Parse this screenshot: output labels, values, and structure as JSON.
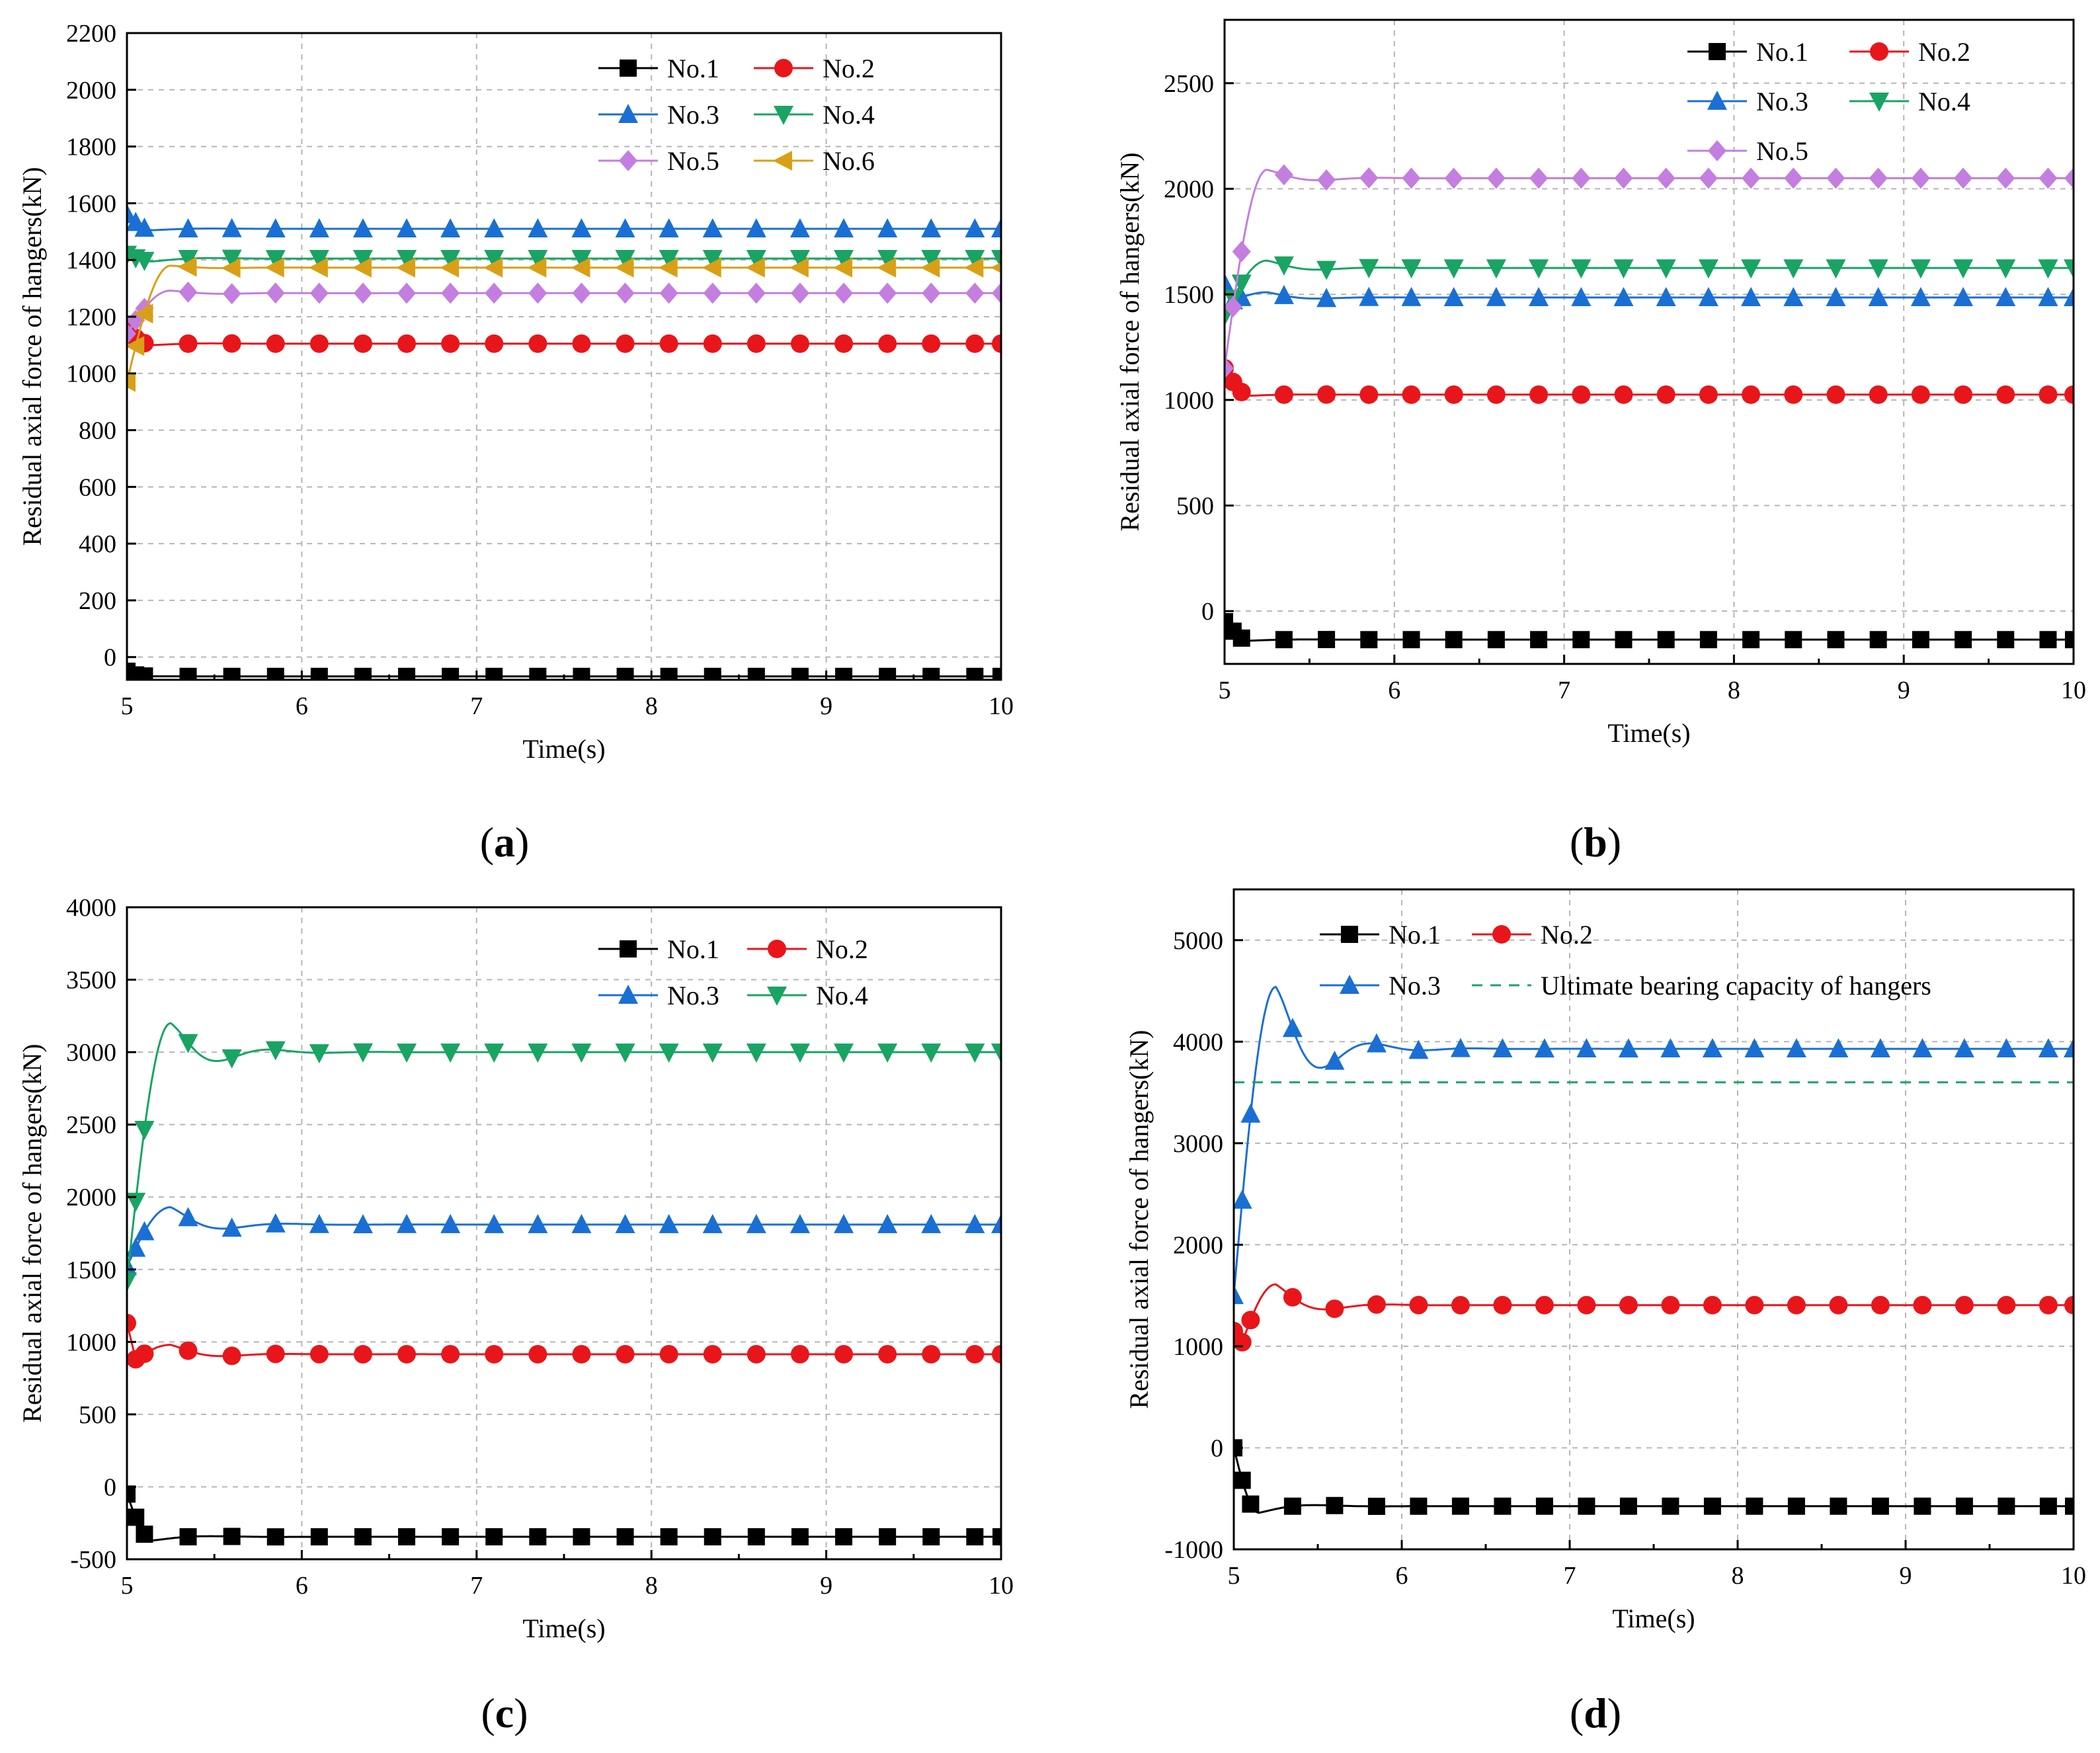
{
  "chart_data": [
    {
      "panel": "(a)",
      "panel_letter": "a",
      "type": "line",
      "xlabel": "Time(s)",
      "ylabel": "Residual axial force of hangers(kN)",
      "xlim": [
        5,
        10
      ],
      "ylim": [
        -80,
        2200
      ],
      "xticks": [
        5,
        6,
        7,
        8,
        9,
        10
      ],
      "yticks": [
        0,
        200,
        400,
        600,
        800,
        1000,
        1200,
        1400,
        1600,
        1800,
        2000,
        2200
      ],
      "grid": true,
      "legend_position": "top-right",
      "legend_columns": 2,
      "series": [
        {
          "name": "No.1",
          "color": "#000000",
          "marker": "square",
          "initial": -50,
          "dip": -55,
          "peak": null,
          "final": -68
        },
        {
          "name": "No.2",
          "color": "#e8161b",
          "marker": "circle",
          "initial": 1150,
          "dip": 1100,
          "peak": null,
          "final": 1105
        },
        {
          "name": "No.3",
          "color": "#1a6fd4",
          "marker": "triangle-up",
          "initial": 1560,
          "dip": 1505,
          "peak": null,
          "final": 1510
        },
        {
          "name": "No.4",
          "color": "#19a463",
          "marker": "triangle-down",
          "initial": 1420,
          "dip": 1395,
          "peak": null,
          "final": 1405
        },
        {
          "name": "No.5",
          "color": "#c37ee0",
          "marker": "diamond",
          "initial": 1140,
          "dip": null,
          "peak": 1292,
          "final": 1283
        },
        {
          "name": "No.6",
          "color": "#d9a017",
          "marker": "triangle-left",
          "initial": 970,
          "dip": null,
          "peak": 1380,
          "final": 1373
        }
      ]
    },
    {
      "panel": "(b)",
      "panel_letter": "b",
      "type": "line",
      "xlabel": "Time(s)",
      "ylabel": "Residual axial force of hangers(kN)",
      "xlim": [
        5,
        10
      ],
      "ylim": [
        -250,
        2800
      ],
      "xticks": [
        5,
        6,
        7,
        8,
        9,
        10
      ],
      "yticks": [
        0,
        500,
        1000,
        1500,
        2000,
        2500
      ],
      "grid": true,
      "legend_position": "top-right",
      "legend_columns": 2,
      "series": [
        {
          "name": "No.1",
          "color": "#000000",
          "marker": "square",
          "initial": -50,
          "dip": -140,
          "peak": null,
          "final": -135
        },
        {
          "name": "No.2",
          "color": "#e8161b",
          "marker": "circle",
          "initial": 1150,
          "dip": 1020,
          "peak": null,
          "final": 1025
        },
        {
          "name": "No.3",
          "color": "#1a6fd4",
          "marker": "triangle-up",
          "initial": 1550,
          "dip": 1470,
          "peak": 1510,
          "final": 1485
        },
        {
          "name": "No.4",
          "color": "#19a463",
          "marker": "triangle-down",
          "initial": 1400,
          "dip": null,
          "peak": 1660,
          "final": 1625
        },
        {
          "name": "No.5",
          "color": "#c37ee0",
          "marker": "diamond",
          "initial": 1150,
          "dip": null,
          "peak": 2090,
          "final": 2050
        }
      ]
    },
    {
      "panel": "(c)",
      "panel_letter": "c",
      "type": "line",
      "xlabel": "Time(s)",
      "ylabel": "Residual axial force of hangers(kN)",
      "xlim": [
        5,
        10
      ],
      "ylim": [
        -500,
        4000
      ],
      "xticks": [
        5,
        6,
        7,
        8,
        9,
        10
      ],
      "yticks": [
        -500,
        0,
        500,
        1000,
        1500,
        2000,
        2500,
        3000,
        3500,
        4000
      ],
      "grid": true,
      "legend_position": "top-right",
      "legend_columns": 2,
      "series": [
        {
          "name": "No.1",
          "color": "#000000",
          "marker": "square",
          "initial": -50,
          "dip": -370,
          "peak": null,
          "final": -345
        },
        {
          "name": "No.2",
          "color": "#e8161b",
          "marker": "circle",
          "initial": 1130,
          "dip": 880,
          "peak": 980,
          "final": 915
        },
        {
          "name": "No.3",
          "color": "#1a6fd4",
          "marker": "triangle-up",
          "initial": 1520,
          "dip": null,
          "peak": 1930,
          "final": 1810
        },
        {
          "name": "No.4",
          "color": "#19a463",
          "marker": "triangle-down",
          "initial": 1420,
          "dip": 2930,
          "peak": 3200,
          "final": 3000
        }
      ]
    },
    {
      "panel": "(d)",
      "panel_letter": "d",
      "type": "line",
      "xlabel": "Time(s)",
      "ylabel": "Residual axial force of hangers(kN)",
      "xlim": [
        5,
        10
      ],
      "ylim": [
        -1000,
        5500
      ],
      "xticks": [
        5,
        6,
        7,
        8,
        9,
        10
      ],
      "yticks": [
        -1000,
        0,
        1000,
        2000,
        3000,
        4000,
        5000
      ],
      "grid": true,
      "legend_position": "top-left",
      "legend_columns": 2,
      "series": [
        {
          "name": "No.1",
          "color": "#000000",
          "marker": "square",
          "initial": 0,
          "dip": -640,
          "peak": null,
          "final": -575
        },
        {
          "name": "No.2",
          "color": "#e8161b",
          "marker": "circle",
          "initial": 1150,
          "dip": 1040,
          "peak": 1610,
          "final": 1405
        },
        {
          "name": "No.3",
          "color": "#1a6fd4",
          "marker": "triangle-up",
          "initial": 1500,
          "dip": 3720,
          "peak": 4540,
          "final": 3930
        },
        {
          "name": "Ultimate bearing capacity of hangers",
          "color": "#19a463",
          "marker": "none",
          "dashed": true,
          "constant": 3600
        }
      ]
    }
  ]
}
